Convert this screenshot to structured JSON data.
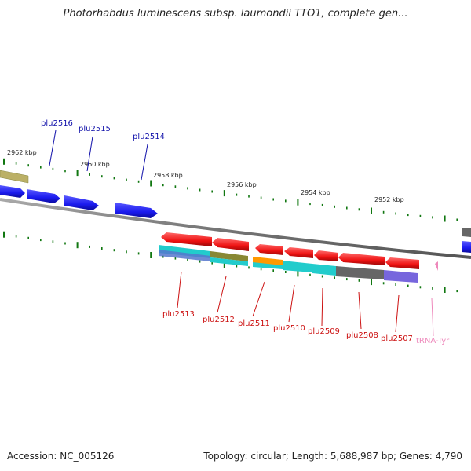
{
  "title": "Photorhabdus luminescens subsp. laumondii TTO1, complete gen...",
  "footer": {
    "accession": "Accession: NC_005126",
    "summary": "Topology: circular; Length: 5,688,987 bp; Genes: 4,790"
  },
  "scale_labels": [
    "2962 kbp",
    "2960 kbp",
    "2958 kbp",
    "2956 kbp",
    "2954 kbp",
    "2952 kbp"
  ],
  "genes": {
    "forward_strand": [
      "plu2516",
      "plu2515",
      "plu2514"
    ],
    "reverse_strand": [
      "plu2513",
      "plu2512",
      "plu2511",
      "plu2510",
      "plu2509",
      "plu2508",
      "plu2507"
    ],
    "trna": [
      "tRNA-Tyr"
    ]
  },
  "colors": {
    "forward_gene": "#1a1aee",
    "reverse_gene": "#ee1111",
    "trna": "#ee88bb",
    "backbone": "#777777",
    "tick": "#117711",
    "forward_label": "#1111aa",
    "reverse_label": "#cc1111",
    "trna_label": "#ee88bb",
    "cds_cyan": "#22cccc",
    "cds_olive": "#888833",
    "cds_orange": "#ff9900",
    "cds_gray": "#666666",
    "cds_purple": "#7766dd",
    "cds_khaki": "#bbb066"
  }
}
